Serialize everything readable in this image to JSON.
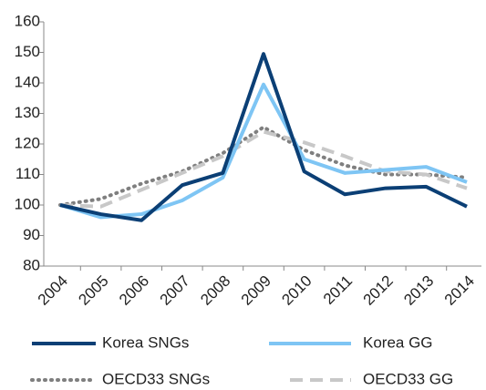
{
  "chart_data": {
    "type": "line",
    "categories": [
      "2004",
      "2005",
      "2006",
      "2007",
      "2008",
      "2009",
      "2010",
      "2011",
      "2012",
      "2013",
      "2014"
    ],
    "series": [
      {
        "name": "Korea SNGs",
        "color": "#0b3f75",
        "style": "solid",
        "values": [
          100,
          97,
          95,
          106.5,
          110.5,
          149.5,
          111,
          103.5,
          105.5,
          106,
          99.5
        ]
      },
      {
        "name": "Korea GG",
        "color": "#7ec5f4",
        "style": "solid",
        "values": [
          100,
          96,
          97,
          101.5,
          109,
          139.5,
          115,
          110.5,
          111.5,
          112.5,
          107.5
        ]
      },
      {
        "name": "OECD33 SNGs",
        "color": "#7f7f7f",
        "style": "dotted",
        "values": [
          100,
          102,
          107,
          111,
          117,
          125.5,
          118,
          113,
          110,
          110,
          109
        ]
      },
      {
        "name": "OECD33 GG",
        "color": "#c8c8c8",
        "style": "dashed",
        "values": [
          100,
          99.5,
          105,
          110.5,
          116,
          124,
          120.5,
          116,
          111,
          110,
          105.5
        ]
      }
    ],
    "ylim": [
      80,
      160
    ],
    "yticks": [
      80,
      90,
      100,
      110,
      120,
      130,
      140,
      150,
      160
    ],
    "grid": false,
    "legend": "bottom"
  }
}
